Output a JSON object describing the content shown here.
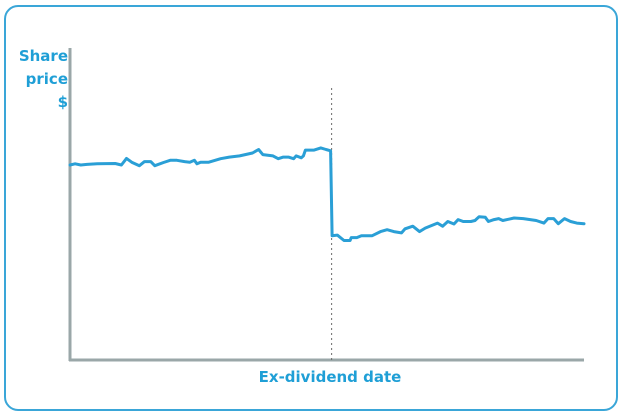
{
  "chart_data": {
    "type": "line",
    "ylabel": [
      "Share",
      "price",
      "$"
    ],
    "xlabel": "Ex-dividend date",
    "grid": false,
    "legend": "none",
    "ylim": [
      0,
      100
    ],
    "xlim": [
      0,
      100
    ],
    "ex_dividend_x": 50.9,
    "series": [
      {
        "color": "#2a9fd6",
        "points": [
          [
            0,
            61.5
          ],
          [
            1,
            61.9
          ],
          [
            2.1,
            61.5
          ],
          [
            3.3,
            61.7
          ],
          [
            5.3,
            61.9
          ],
          [
            8.8,
            62
          ],
          [
            10,
            61.5
          ],
          [
            11,
            63.6
          ],
          [
            12,
            62.4
          ],
          [
            13.5,
            61.3
          ],
          [
            14.5,
            62.6
          ],
          [
            15.7,
            62.6
          ],
          [
            16.5,
            61.3
          ],
          [
            18.2,
            62.3
          ],
          [
            19.5,
            63
          ],
          [
            20.8,
            63
          ],
          [
            22.3,
            62.6
          ],
          [
            23.3,
            62.4
          ],
          [
            24.2,
            63
          ],
          [
            24.7,
            61.9
          ],
          [
            25.4,
            62.4
          ],
          [
            27,
            62.4
          ],
          [
            29.3,
            63.5
          ],
          [
            31,
            64
          ],
          [
            33,
            64.4
          ],
          [
            35.5,
            65.3
          ],
          [
            36.7,
            66.4
          ],
          [
            37.5,
            64.8
          ],
          [
            39.5,
            64.4
          ],
          [
            40.5,
            63.5
          ],
          [
            41.5,
            64
          ],
          [
            42.5,
            64
          ],
          [
            43.5,
            63.5
          ],
          [
            44,
            64.4
          ],
          [
            45,
            63.8
          ],
          [
            45.4,
            64.4
          ],
          [
            45.8,
            66.2
          ],
          [
            47.5,
            66.2
          ],
          [
            48.8,
            66.9
          ],
          [
            49.8,
            66.4
          ],
          [
            50.7,
            66
          ],
          [
            51,
            39.2
          ],
          [
            52,
            39.4
          ],
          [
            53.3,
            37.7
          ],
          [
            54.5,
            37.7
          ],
          [
            54.7,
            38.6
          ],
          [
            55.8,
            38.6
          ],
          [
            56.7,
            39.2
          ],
          [
            58.8,
            39.2
          ],
          [
            60.4,
            40.5
          ],
          [
            61.7,
            41.1
          ],
          [
            63,
            40.5
          ],
          [
            64.5,
            40.1
          ],
          [
            65.2,
            41.4
          ],
          [
            66.7,
            42.2
          ],
          [
            68,
            40.5
          ],
          [
            69.1,
            41.6
          ],
          [
            71.5,
            43.2
          ],
          [
            72.5,
            42.2
          ],
          [
            73.5,
            43.7
          ],
          [
            74.7,
            42.9
          ],
          [
            75.5,
            44.3
          ],
          [
            76.5,
            43.7
          ],
          [
            78,
            43.7
          ],
          [
            78.8,
            44
          ],
          [
            79.6,
            45.2
          ],
          [
            80.8,
            45
          ],
          [
            81.4,
            43.7
          ],
          [
            82.5,
            44.3
          ],
          [
            83.4,
            44.6
          ],
          [
            84.2,
            44
          ],
          [
            86.4,
            44.8
          ],
          [
            88.2,
            44.6
          ],
          [
            90.7,
            44
          ],
          [
            92.2,
            43.2
          ],
          [
            93,
            44.6
          ],
          [
            94.1,
            44.6
          ],
          [
            95,
            43
          ],
          [
            96.2,
            44.6
          ],
          [
            97.4,
            43.7
          ],
          [
            98.6,
            43.2
          ],
          [
            100,
            43
          ]
        ]
      }
    ]
  }
}
